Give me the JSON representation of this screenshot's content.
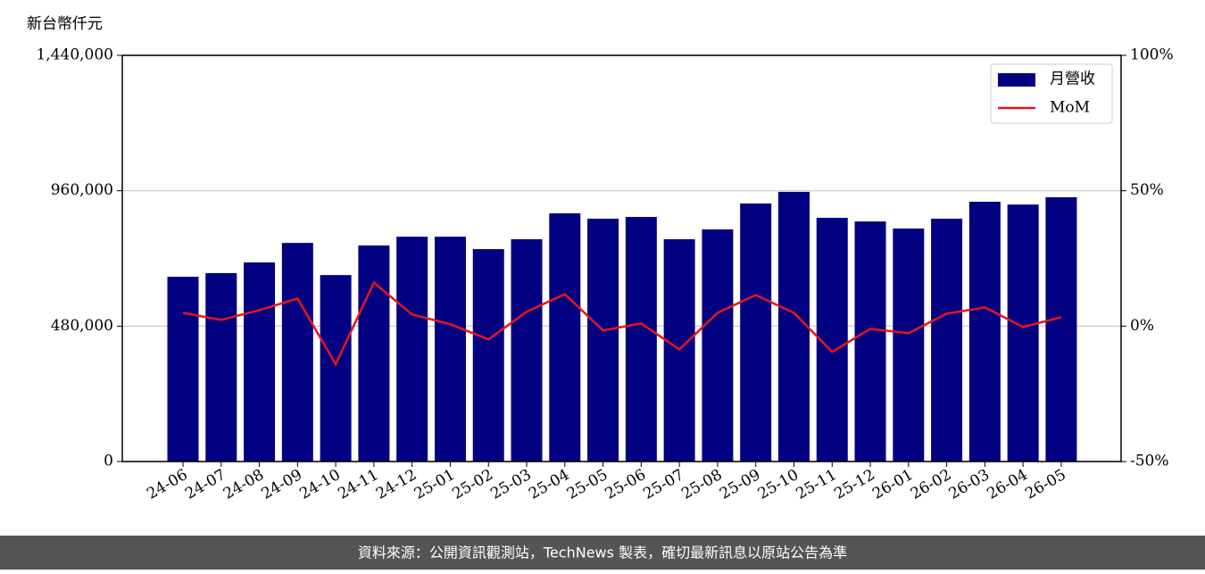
{
  "chart_data": {
    "type": "bar",
    "y_label": "新台幣仟元",
    "categories": [
      "24-06",
      "24-07",
      "24-08",
      "24-09",
      "24-10",
      "24-11",
      "24-12",
      "25-01",
      "25-02",
      "25-03",
      "25-04",
      "25-05",
      "25-06",
      "25-07",
      "25-08",
      "25-09",
      "25-10",
      "25-11",
      "25-12",
      "26-01",
      "26-02",
      "26-03",
      "26-04",
      "26-05"
    ],
    "series": [
      {
        "name": "月營收",
        "color": "#000080",
        "type": "bar",
        "values": [
          655000,
          668000,
          706000,
          775000,
          661000,
          766000,
          797000,
          797000,
          753000,
          788000,
          880000,
          861000,
          867000,
          788000,
          823000,
          915000,
          956000,
          864000,
          851000,
          826000,
          861000,
          921000,
          911000,
          937000
        ]
      },
      {
        "name": "MoM",
        "color": "#e8141c",
        "type": "line",
        "axis": "y2",
        "values": [
          4.9,
          2.3,
          5.9,
          10.2,
          -14.1,
          16.1,
          4.3,
          0.7,
          -4.9,
          5.3,
          11.8,
          -1.6,
          1.0,
          -8.6,
          4.9,
          11.5,
          4.9,
          -9.5,
          -1.0,
          -2.6,
          4.6,
          6.9,
          -0.3,
          3.3
        ]
      }
    ],
    "ylim": [
      0,
      1440000
    ],
    "yticks": [
      0,
      {
        "value": 480000,
        "label": "480,000"
      },
      {
        "value": 960000,
        "label": "960,000"
      },
      {
        "value": 1440000,
        "label": "1,440,000"
      }
    ],
    "y2lim": [
      -50,
      100
    ],
    "y2ticks": [
      {
        "value": -50,
        "label": "-50%"
      },
      {
        "value": 0,
        "label": "0%"
      },
      {
        "value": 50,
        "label": "50%"
      },
      {
        "value": 100,
        "label": "100%"
      }
    ],
    "grid": true,
    "legend": "upper right",
    "footer": "資料來源：公開資訊觀測站，TechNews 製表，確切最新訊息以原站公告為準"
  }
}
